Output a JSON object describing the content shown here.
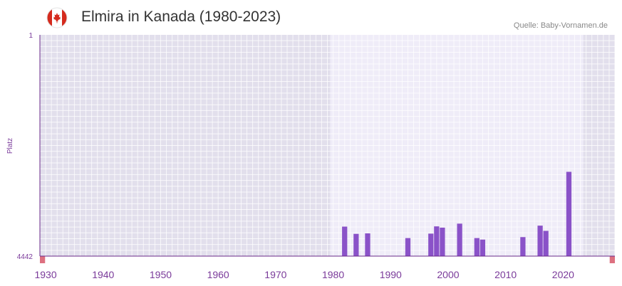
{
  "header": {
    "title": "Elmira in Kanada (1980-2023)",
    "source": "Quelle: Baby-Vornamen.de",
    "flag_icon": "canada-flag-icon"
  },
  "chart_data": {
    "type": "bar",
    "title": "Elmira in Kanada (1980-2023)",
    "xlabel": "",
    "ylabel": "Platz",
    "y_top_label": "1",
    "y_bottom_label": "4442",
    "ylim": [
      1,
      4442
    ],
    "xlim": [
      1929,
      2029
    ],
    "highlight_range": [
      1980,
      2023
    ],
    "x_ticks": [
      "1930",
      "1940",
      "1950",
      "1960",
      "1970",
      "1980",
      "1990",
      "2000",
      "2010",
      "2020"
    ],
    "series": [
      {
        "name": "Elmira",
        "years": [
          1982,
          1984,
          1986,
          1993,
          1997,
          1998,
          1999,
          2002,
          2005,
          2006,
          2013,
          2016,
          2017,
          2021
        ],
        "values": [
          3850,
          3995,
          3985,
          4080,
          3990,
          3845,
          3870,
          3790,
          4080,
          4110,
          4060,
          3830,
          3935,
          2750
        ]
      }
    ],
    "colors": {
      "bar": "#8a52c8",
      "axis": "#6a2a8a",
      "bg_outside": "#e2dfec",
      "bg_inside": "#efecf8",
      "decade_mark": "#dd7080",
      "half_decade_mark": "#f5d0da",
      "label": "#7a3a9a"
    }
  }
}
